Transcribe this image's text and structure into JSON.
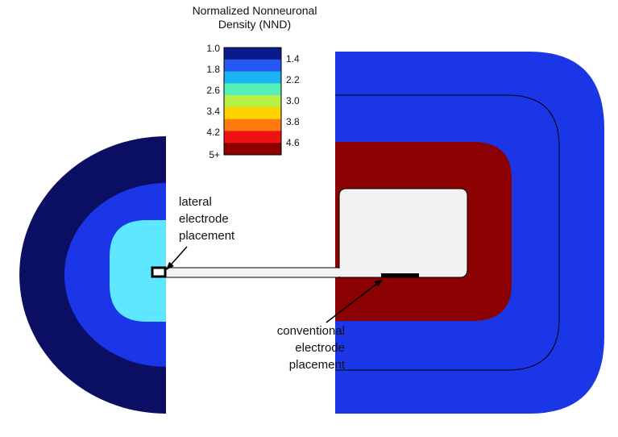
{
  "legend": {
    "title_line1": "Normalized Nonneuronal",
    "title_line2": "Density (NND)",
    "left_labels": [
      "1.0",
      "1.8",
      "2.6",
      "3.4",
      "4.2",
      "5+"
    ],
    "right_labels": [
      "1.4",
      "2.2",
      "3.0",
      "3.8",
      "4.6"
    ],
    "colors": [
      "#0a1a8a",
      "#2458f0",
      "#1ab4f2",
      "#55efb8",
      "#b8f044",
      "#ffd300",
      "#ff7a10",
      "#f01212",
      "#8e0000"
    ]
  },
  "annotations": {
    "lateral_line1": "lateral",
    "lateral_line2": "electrode",
    "lateral_line3": "placement",
    "conventional_line1": "conventional",
    "conventional_line2": "electrode",
    "conventional_line3": "placement"
  },
  "colors": {
    "navy": "#0b0f63",
    "blue": "#1a36e6",
    "cyan": "#5ee8ff",
    "darkred": "#8b0000",
    "implant_fill": "#f2f2f2",
    "electrode": "#000000"
  }
}
